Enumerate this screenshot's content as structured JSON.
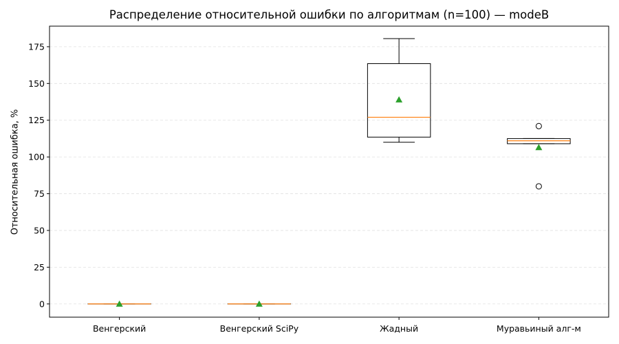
{
  "chart_data": {
    "type": "box",
    "title": "Распределение относительной ошибки по алгоритмам (n=100) — modeB",
    "xlabel": "",
    "ylabel": "Относительная ошибка, %",
    "ylim": [
      -9,
      189
    ],
    "yticks": [
      0,
      25,
      50,
      75,
      100,
      125,
      150,
      175
    ],
    "grid": {
      "y": true,
      "x": false,
      "style": "dashed"
    },
    "categories": [
      "Венгерский",
      "Венгерский SciPy",
      "Жадный",
      "Муравьиный алг-м"
    ],
    "boxes": [
      {
        "name": "Венгерский",
        "whisker_low": 0,
        "q1": 0,
        "median": 0,
        "q3": 0,
        "whisker_high": 0,
        "mean": 0,
        "outliers": []
      },
      {
        "name": "Венгерский SciPy",
        "whisker_low": 0,
        "q1": 0,
        "median": 0,
        "q3": 0,
        "whisker_high": 0,
        "mean": 0,
        "outliers": []
      },
      {
        "name": "Жадный",
        "whisker_low": 110,
        "q1": 113.5,
        "median": 127,
        "q3": 163.5,
        "whisker_high": 180.5,
        "mean": 139,
        "outliers": []
      },
      {
        "name": "Муравьиный алг-м",
        "whisker_low": 109,
        "q1": 109,
        "median": 111,
        "q3": 112.5,
        "whisker_high": 112.5,
        "mean": 106.5,
        "outliers": [
          121,
          80
        ]
      }
    ],
    "colors": {
      "box": "#000000",
      "median": "#ff7f0e",
      "mean": "#2ca02c",
      "grid": "#e0e0e0"
    }
  }
}
